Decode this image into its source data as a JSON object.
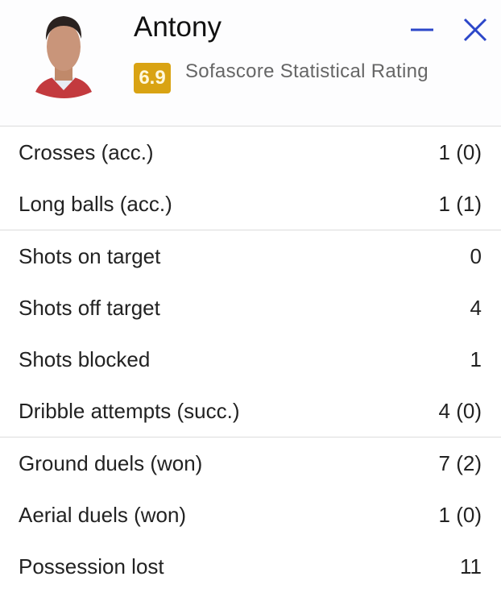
{
  "player": {
    "name": "Antony",
    "rating": "6.9",
    "rating_label": "Sofascore Statistical Rating"
  },
  "colors": {
    "rating_badge": "#d9a313",
    "window_controls": "#2c47c9"
  },
  "icons": {
    "minimize": "minimize-icon",
    "close": "close-icon"
  },
  "sections": [
    {
      "rows": [
        {
          "label": "Crosses (acc.)",
          "value": "1 (0)"
        },
        {
          "label": "Long balls (acc.)",
          "value": "1 (1)"
        }
      ]
    },
    {
      "rows": [
        {
          "label": "Shots on target",
          "value": "0"
        },
        {
          "label": "Shots off target",
          "value": "4"
        },
        {
          "label": "Shots blocked",
          "value": "1"
        },
        {
          "label": "Dribble attempts (succ.)",
          "value": "4 (0)"
        }
      ]
    },
    {
      "rows": [
        {
          "label": "Ground duels (won)",
          "value": "7 (2)"
        },
        {
          "label": "Aerial duels (won)",
          "value": "1 (0)"
        },
        {
          "label": "Possession lost",
          "value": "11"
        }
      ]
    }
  ]
}
